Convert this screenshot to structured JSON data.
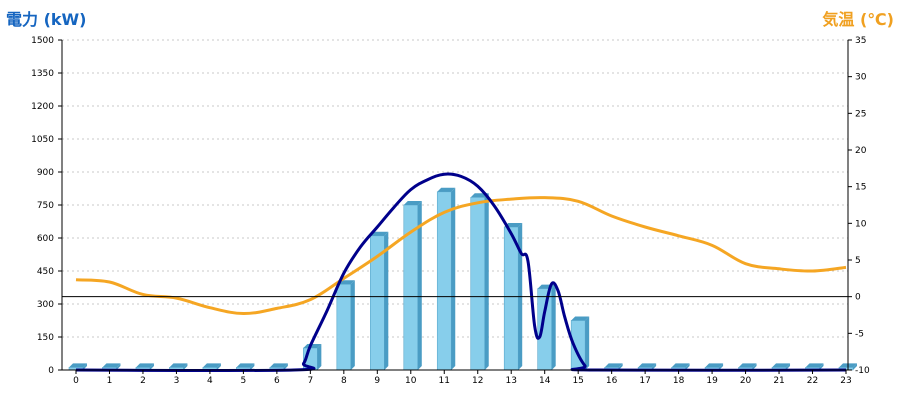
{
  "chart_data": {
    "type": "bar+line",
    "left_axis_title": "電力 (kW)",
    "right_axis_title": "気温 (℃)",
    "colors": {
      "left_axis_title": "#1565C0",
      "right_axis_title": "#F0A020",
      "bar": "#87CEEB",
      "power_line": "#00008B",
      "temperature_line": "#F5A623",
      "zero_line": "#000000",
      "grid": "#c8c8c8"
    },
    "x": {
      "ticks": [
        "0",
        "1",
        "2",
        "3",
        "4",
        "5",
        "6",
        "7",
        "8",
        "9",
        "10",
        "11",
        "12",
        "13",
        "14",
        "15",
        "16",
        "17",
        "18",
        "19",
        "20",
        "21",
        "22",
        "23"
      ]
    },
    "y_left": {
      "min": 0,
      "max": 1500,
      "ticks": [
        "0",
        "150",
        "300",
        "450",
        "600",
        "750",
        "900",
        "1050",
        "1200",
        "1350",
        "1500"
      ]
    },
    "y_right": {
      "min": -10,
      "max": 35,
      "ticks": [
        "-10",
        "-5",
        "0",
        "5",
        "10",
        "15",
        "20",
        "25",
        "30",
        "35"
      ]
    },
    "grid": true,
    "bars": {
      "axis": "left",
      "values": [
        0,
        0,
        0,
        0,
        0,
        0,
        0,
        100,
        390,
        610,
        750,
        810,
        785,
        650,
        370,
        225,
        0,
        0,
        0,
        0,
        0,
        0,
        0,
        0
      ]
    },
    "power_line": {
      "axis": "left",
      "points": [
        [
          0,
          0
        ],
        [
          6.5,
          0
        ],
        [
          6.8,
          30
        ],
        [
          7,
          110
        ],
        [
          7.5,
          270
        ],
        [
          8,
          440
        ],
        [
          8.5,
          560
        ],
        [
          9,
          650
        ],
        [
          9.5,
          740
        ],
        [
          10,
          820
        ],
        [
          10.5,
          865
        ],
        [
          11,
          890
        ],
        [
          11.5,
          880
        ],
        [
          12,
          835
        ],
        [
          12.5,
          745
        ],
        [
          13,
          620
        ],
        [
          13.3,
          530
        ],
        [
          13.5,
          495
        ],
        [
          13.7,
          200
        ],
        [
          13.85,
          150
        ],
        [
          14,
          265
        ],
        [
          14.2,
          390
        ],
        [
          14.4,
          360
        ],
        [
          14.6,
          240
        ],
        [
          14.85,
          120
        ],
        [
          15.2,
          20
        ],
        [
          15.5,
          0
        ],
        [
          23,
          0
        ]
      ]
    },
    "temperature_line": {
      "axis": "right",
      "points": [
        [
          0,
          2.3
        ],
        [
          1,
          2.0
        ],
        [
          2,
          0.3
        ],
        [
          3,
          -0.2
        ],
        [
          4,
          -1.5
        ],
        [
          5,
          -2.3
        ],
        [
          6,
          -1.6
        ],
        [
          7,
          -0.4
        ],
        [
          8,
          2.5
        ],
        [
          9,
          5.5
        ],
        [
          10,
          8.8
        ],
        [
          11,
          11.5
        ],
        [
          12,
          12.8
        ],
        [
          13,
          13.3
        ],
        [
          14,
          13.5
        ],
        [
          15,
          13.0
        ],
        [
          16,
          11.0
        ],
        [
          17,
          9.5
        ],
        [
          18,
          8.3
        ],
        [
          19,
          7.0
        ],
        [
          20,
          4.5
        ],
        [
          21,
          3.8
        ],
        [
          22,
          3.5
        ],
        [
          23,
          4.0
        ]
      ]
    }
  }
}
